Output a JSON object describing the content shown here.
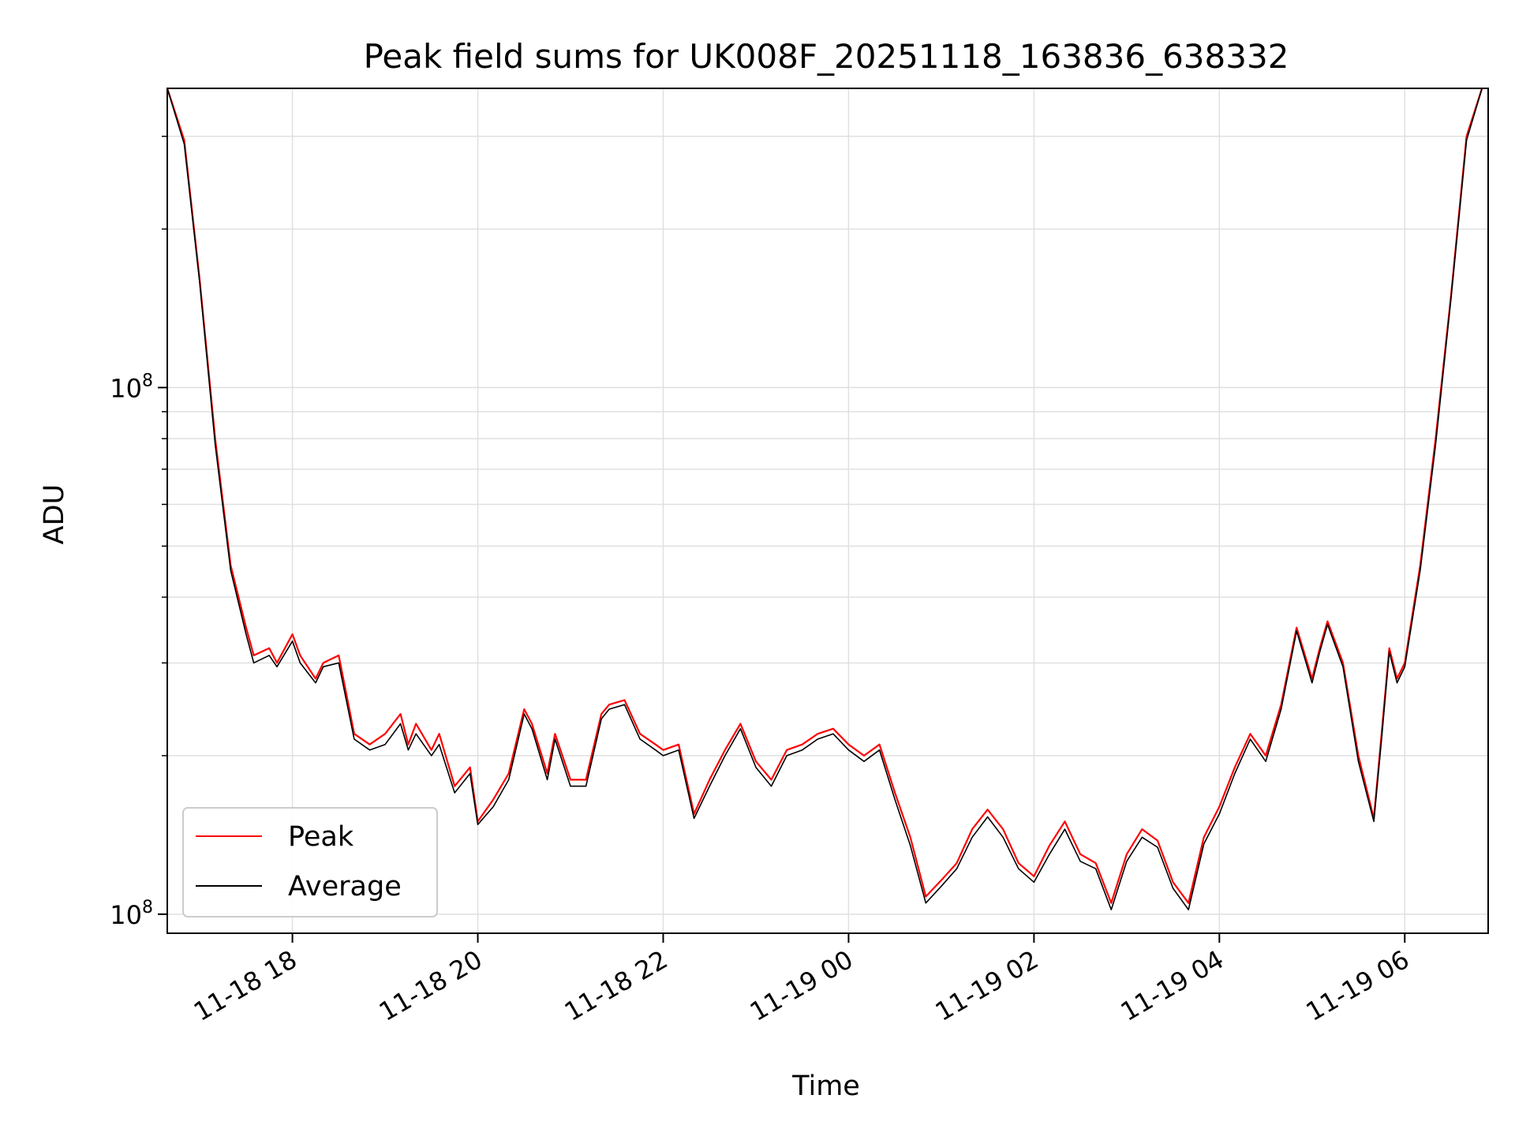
{
  "chart_data": {
    "type": "line",
    "title": "Peak field sums for UK008F_20251118_163836_638332",
    "xlabel": "Time",
    "ylabel": "ADU",
    "yscale": "log",
    "grid": true,
    "legend_position": "lower-left",
    "xlim": [
      "2025-11-18 16:39",
      "2025-11-19 06:54"
    ],
    "ylim": [
      9200000,
      370000000
    ],
    "x_ticks": [
      "11-18 18",
      "11-18 20",
      "11-18 22",
      "11-19 00",
      "11-19 02",
      "11-19 04",
      "11-19 06"
    ],
    "y_ticks": [
      "10^8"
    ],
    "colors": {
      "peak": "#ff0000",
      "average": "#000000",
      "grid": "#e0e0e0"
    },
    "series": [
      {
        "name": "Peak",
        "x": [
          "2025-11-18 16:39",
          "2025-11-18 16:50",
          "2025-11-18 17:00",
          "2025-11-18 17:10",
          "2025-11-18 17:20",
          "2025-11-18 17:30",
          "2025-11-18 17:35",
          "2025-11-18 17:45",
          "2025-11-18 17:50",
          "2025-11-18 18:00",
          "2025-11-18 18:05",
          "2025-11-18 18:15",
          "2025-11-18 18:20",
          "2025-11-18 18:30",
          "2025-11-18 18:40",
          "2025-11-18 18:50",
          "2025-11-18 19:00",
          "2025-11-18 19:10",
          "2025-11-18 19:15",
          "2025-11-18 19:20",
          "2025-11-18 19:30",
          "2025-11-18 19:35",
          "2025-11-18 19:45",
          "2025-11-18 19:55",
          "2025-11-18 20:00",
          "2025-11-18 20:10",
          "2025-11-18 20:20",
          "2025-11-18 20:30",
          "2025-11-18 20:35",
          "2025-11-18 20:45",
          "2025-11-18 20:50",
          "2025-11-18 21:00",
          "2025-11-18 21:10",
          "2025-11-18 21:20",
          "2025-11-18 21:25",
          "2025-11-18 21:35",
          "2025-11-18 21:45",
          "2025-11-18 21:55",
          "2025-11-18 22:00",
          "2025-11-18 22:10",
          "2025-11-18 22:20",
          "2025-11-18 22:30",
          "2025-11-18 22:40",
          "2025-11-18 22:50",
          "2025-11-18 23:00",
          "2025-11-18 23:10",
          "2025-11-18 23:20",
          "2025-11-18 23:30",
          "2025-11-18 23:40",
          "2025-11-18 23:50",
          "2025-11-19 00:00",
          "2025-11-19 00:10",
          "2025-11-19 00:20",
          "2025-11-19 00:30",
          "2025-11-19 00:40",
          "2025-11-19 00:50",
          "2025-11-19 01:00",
          "2025-11-19 01:10",
          "2025-11-19 01:20",
          "2025-11-19 01:30",
          "2025-11-19 01:40",
          "2025-11-19 01:50",
          "2025-11-19 02:00",
          "2025-11-19 02:10",
          "2025-11-19 02:20",
          "2025-11-19 02:30",
          "2025-11-19 02:40",
          "2025-11-19 02:50",
          "2025-11-19 03:00",
          "2025-11-19 03:10",
          "2025-11-19 03:20",
          "2025-11-19 03:30",
          "2025-11-19 03:40",
          "2025-11-19 03:50",
          "2025-11-19 04:00",
          "2025-11-19 04:10",
          "2025-11-19 04:20",
          "2025-11-19 04:30",
          "2025-11-19 04:40",
          "2025-11-19 04:50",
          "2025-11-19 05:00",
          "2025-11-19 05:05",
          "2025-11-19 05:10",
          "2025-11-19 05:20",
          "2025-11-19 05:30",
          "2025-11-19 05:40",
          "2025-11-19 05:45",
          "2025-11-19 05:50",
          "2025-11-19 05:55",
          "2025-11-19 06:00",
          "2025-11-19 06:10",
          "2025-11-19 06:20",
          "2025-11-19 06:30",
          "2025-11-19 06:40",
          "2025-11-19 06:50"
        ],
        "y": [
          370000000,
          295000000,
          160000000,
          80000000,
          46000000,
          35000000,
          31000000,
          32000000,
          30000000,
          34000000,
          31000000,
          28000000,
          30000000,
          31000000,
          22000000,
          21000000,
          22000000,
          24000000,
          21000000,
          23000000,
          20500000,
          22000000,
          17500000,
          19000000,
          15000000,
          16500000,
          18500000,
          24500000,
          23000000,
          18500000,
          22000000,
          18000000,
          18000000,
          24000000,
          25000000,
          25500000,
          22000000,
          21000000,
          20500000,
          21000000,
          15500000,
          18000000,
          20500000,
          23000000,
          19500000,
          18000000,
          20500000,
          21000000,
          22000000,
          22500000,
          21000000,
          20000000,
          21000000,
          17000000,
          14000000,
          10800000,
          11600000,
          12500000,
          14500000,
          15800000,
          14500000,
          12500000,
          11800000,
          13500000,
          15000000,
          13000000,
          12500000,
          10500000,
          13000000,
          14500000,
          13800000,
          11500000,
          10500000,
          14000000,
          16000000,
          19000000,
          22000000,
          20000000,
          25000000,
          35000000,
          28000000,
          32000000,
          36000000,
          30000000,
          20000000,
          15200000,
          22000000,
          32000000,
          28000000,
          30000000,
          46000000,
          80000000,
          150000000,
          300000000,
          370000000
        ]
      },
      {
        "name": "Average",
        "x": [
          "2025-11-18 16:39",
          "2025-11-18 16:50",
          "2025-11-18 17:00",
          "2025-11-18 17:10",
          "2025-11-18 17:20",
          "2025-11-18 17:30",
          "2025-11-18 17:35",
          "2025-11-18 17:45",
          "2025-11-18 17:50",
          "2025-11-18 18:00",
          "2025-11-18 18:05",
          "2025-11-18 18:15",
          "2025-11-18 18:20",
          "2025-11-18 18:30",
          "2025-11-18 18:40",
          "2025-11-18 18:50",
          "2025-11-18 19:00",
          "2025-11-18 19:10",
          "2025-11-18 19:15",
          "2025-11-18 19:20",
          "2025-11-18 19:30",
          "2025-11-18 19:35",
          "2025-11-18 19:45",
          "2025-11-18 19:55",
          "2025-11-18 20:00",
          "2025-11-18 20:10",
          "2025-11-18 20:20",
          "2025-11-18 20:30",
          "2025-11-18 20:35",
          "2025-11-18 20:45",
          "2025-11-18 20:50",
          "2025-11-18 21:00",
          "2025-11-18 21:10",
          "2025-11-18 21:20",
          "2025-11-18 21:25",
          "2025-11-18 21:35",
          "2025-11-18 21:45",
          "2025-11-18 21:55",
          "2025-11-18 22:00",
          "2025-11-18 22:10",
          "2025-11-18 22:20",
          "2025-11-18 22:30",
          "2025-11-18 22:40",
          "2025-11-18 22:50",
          "2025-11-18 23:00",
          "2025-11-18 23:10",
          "2025-11-18 23:20",
          "2025-11-18 23:30",
          "2025-11-18 23:40",
          "2025-11-18 23:50",
          "2025-11-19 00:00",
          "2025-11-19 00:10",
          "2025-11-19 00:20",
          "2025-11-19 00:30",
          "2025-11-19 00:40",
          "2025-11-19 00:50",
          "2025-11-19 01:00",
          "2025-11-19 01:10",
          "2025-11-19 01:20",
          "2025-11-19 01:30",
          "2025-11-19 01:40",
          "2025-11-19 01:50",
          "2025-11-19 02:00",
          "2025-11-19 02:10",
          "2025-11-19 02:20",
          "2025-11-19 02:30",
          "2025-11-19 02:40",
          "2025-11-19 02:50",
          "2025-11-19 03:00",
          "2025-11-19 03:10",
          "2025-11-19 03:20",
          "2025-11-19 03:30",
          "2025-11-19 03:40",
          "2025-11-19 03:50",
          "2025-11-19 04:00",
          "2025-11-19 04:10",
          "2025-11-19 04:20",
          "2025-11-19 04:30",
          "2025-11-19 04:40",
          "2025-11-19 04:50",
          "2025-11-19 05:00",
          "2025-11-19 05:05",
          "2025-11-19 05:10",
          "2025-11-19 05:20",
          "2025-11-19 05:30",
          "2025-11-19 05:40",
          "2025-11-19 05:45",
          "2025-11-19 05:50",
          "2025-11-19 05:55",
          "2025-11-19 06:00",
          "2025-11-19 06:10",
          "2025-11-19 06:20",
          "2025-11-19 06:30",
          "2025-11-19 06:40",
          "2025-11-19 06:50"
        ],
        "y": [
          370000000,
          290000000,
          158000000,
          78000000,
          45000000,
          34000000,
          30000000,
          31000000,
          29500000,
          33000000,
          30000000,
          27500000,
          29500000,
          30000000,
          21500000,
          20500000,
          21000000,
          23000000,
          20500000,
          22000000,
          20000000,
          21000000,
          17000000,
          18500000,
          14800000,
          16000000,
          18000000,
          24000000,
          22500000,
          18000000,
          21500000,
          17500000,
          17500000,
          23500000,
          24500000,
          25000000,
          21500000,
          20500000,
          20000000,
          20500000,
          15200000,
          17500000,
          20000000,
          22500000,
          19000000,
          17500000,
          20000000,
          20500000,
          21500000,
          22000000,
          20500000,
          19500000,
          20500000,
          16500000,
          13500000,
          10500000,
          11300000,
          12200000,
          14000000,
          15300000,
          14000000,
          12200000,
          11500000,
          13000000,
          14500000,
          12600000,
          12200000,
          10200000,
          12600000,
          14000000,
          13400000,
          11200000,
          10200000,
          13600000,
          15500000,
          18500000,
          21500000,
          19500000,
          24500000,
          34500000,
          27500000,
          31500000,
          35500000,
          29500000,
          19500000,
          15000000,
          21500000,
          31500000,
          27500000,
          29500000,
          45000000,
          78000000,
          148000000,
          295000000,
          370000000
        ]
      }
    ]
  }
}
